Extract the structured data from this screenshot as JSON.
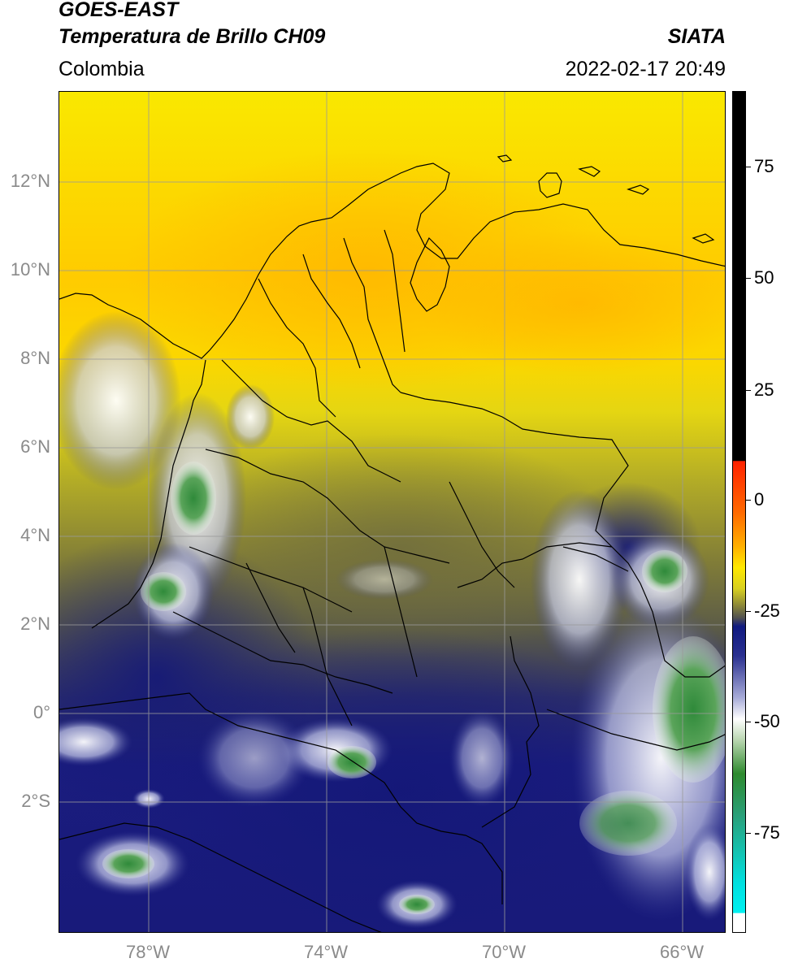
{
  "header": {
    "satellite": "GOES-EAST",
    "product": "Temperatura de Brillo CH09",
    "organization": "SIATA",
    "region": "Colombia",
    "datetime": "2022-02-17 20:49"
  },
  "map": {
    "lat_labels": [
      "12°N",
      "10°N",
      "8°N",
      "6°N",
      "4°N",
      "2°N",
      "0°",
      "2°S"
    ],
    "lon_labels": [
      "78°W",
      "74°W",
      "70°W",
      "66°W"
    ],
    "gridline_color": "#9a9a9a",
    "colors": {
      "warm_yellow": "#f7e600",
      "warm_orange": "#ffc400",
      "olive": "#9e9a30",
      "dark_olive": "#6b6a40",
      "navy": "#1a1c7e",
      "white_cloud": "#e8ecf6",
      "green_cold": "#3f8f3f",
      "coastline": "#000000"
    }
  },
  "colorbar": {
    "tick_labels": [
      "75",
      "50",
      "25",
      "0",
      "-25",
      "-50",
      "-75"
    ],
    "colors": {
      "black": "#000000",
      "red": "#ff2a00",
      "orange": "#ff9a00",
      "yellow": "#ffe800",
      "olive": "#7a7838",
      "navy": "#101a80",
      "white": "#ffffff",
      "green": "#2e8a2e",
      "cyan": "#00e6e6"
    }
  }
}
